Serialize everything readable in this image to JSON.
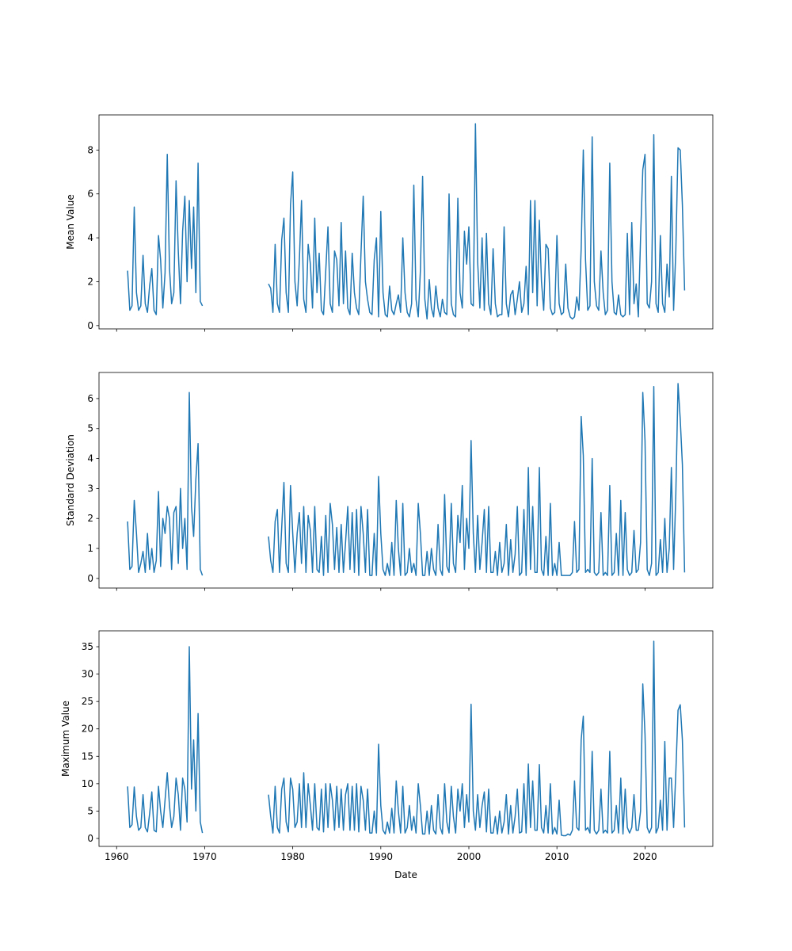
{
  "chart_data": [
    {
      "type": "line",
      "ylabel": "Mean Value",
      "xlabel": "",
      "color": "#1f77b4",
      "xlim": [
        1958.0,
        2027.7
      ],
      "ylim": [
        -0.15,
        9.6
      ],
      "xticks": [
        1960,
        1970,
        1980,
        1990,
        2000,
        2010,
        2020
      ],
      "show_xtick_labels": false,
      "yticks": [
        0,
        2,
        4,
        6,
        8
      ],
      "x_start": 1961.0,
      "x_step": 0.25,
      "values": [
        null,
        2.5,
        0.7,
        0.9,
        5.4,
        1.5,
        0.7,
        0.9,
        3.2,
        1.0,
        0.6,
        1.8,
        2.6,
        0.7,
        0.5,
        4.1,
        3.0,
        0.8,
        2.4,
        7.8,
        2.6,
        1.0,
        1.5,
        6.6,
        3.4,
        1.0,
        4.3,
        5.9,
        2.0,
        5.7,
        2.6,
        5.4,
        1.5,
        7.4,
        1.1,
        0.9,
        null,
        null,
        null,
        null,
        null,
        null,
        null,
        null,
        null,
        null,
        null,
        null,
        null,
        null,
        null,
        null,
        null,
        null,
        null,
        null,
        null,
        null,
        null,
        null,
        null,
        null,
        null,
        null,
        null,
        1.9,
        1.7,
        0.6,
        3.7,
        1.0,
        0.6,
        3.9,
        4.9,
        1.5,
        0.6,
        5.5,
        7.0,
        2.0,
        0.9,
        3.0,
        5.7,
        1.2,
        0.6,
        3.7,
        2.8,
        0.8,
        4.9,
        1.5,
        3.3,
        0.7,
        0.5,
        2.5,
        4.5,
        1.0,
        0.6,
        3.4,
        3.0,
        0.9,
        4.7,
        1.0,
        3.4,
        0.8,
        0.5,
        3.3,
        1.5,
        0.8,
        0.5,
        3.3,
        5.9,
        2.0,
        1.2,
        0.6,
        0.5,
        3.0,
        4.0,
        0.4,
        5.2,
        1.5,
        0.5,
        0.4,
        1.8,
        0.7,
        0.5,
        1.0,
        1.4,
        0.6,
        4.0,
        1.5,
        0.6,
        0.4,
        1.0,
        6.4,
        1.2,
        0.4,
        2.5,
        6.8,
        1.2,
        0.3,
        2.1,
        0.8,
        0.4,
        1.8,
        0.8,
        0.4,
        1.2,
        0.6,
        0.5,
        6.0,
        1.0,
        0.5,
        0.4,
        5.8,
        1.5,
        0.8,
        4.3,
        2.8,
        4.5,
        1.0,
        0.9,
        9.2,
        2.9,
        0.8,
        4.0,
        0.7,
        4.2,
        1.0,
        0.5,
        3.5,
        1.0,
        0.4,
        0.5,
        0.5,
        4.5,
        1.0,
        0.4,
        1.4,
        1.6,
        0.5,
        1.2,
        2.0,
        0.6,
        1.0,
        2.7,
        0.5,
        5.7,
        1.5,
        5.7,
        0.9,
        4.8,
        2.0,
        0.7,
        3.7,
        3.5,
        0.8,
        0.5,
        0.6,
        4.1,
        1.0,
        0.5,
        0.6,
        2.8,
        0.8,
        0.4,
        0.3,
        0.4,
        1.3,
        0.7,
        3.5,
        8.0,
        3.0,
        0.7,
        0.9,
        8.6,
        2.0,
        0.9,
        0.7,
        3.4,
        1.5,
        0.5,
        0.7,
        7.4,
        2.0,
        0.6,
        0.5,
        1.4,
        0.5,
        0.4,
        0.5,
        4.2,
        0.5,
        4.7,
        1.0,
        1.9,
        0.4,
        4.0,
        7.1,
        7.8,
        1.0,
        0.8,
        2.0,
        8.7,
        1.0,
        0.6,
        4.1,
        1.0,
        0.6,
        2.8,
        1.3,
        6.8,
        0.7,
        3.4,
        8.1,
        8.0,
        5.5,
        1.6
      ]
    },
    {
      "type": "line",
      "ylabel": "Standard Deviation",
      "xlabel": "",
      "color": "#1f77b4",
      "xlim": [
        1958.0,
        2027.7
      ],
      "ylim": [
        -0.32,
        6.87
      ],
      "xticks": [
        1960,
        1970,
        1980,
        1990,
        2000,
        2010,
        2020
      ],
      "show_xtick_labels": false,
      "yticks": [
        0,
        1,
        2,
        3,
        4,
        5,
        6
      ],
      "x_start": 1961.0,
      "x_step": 0.25,
      "values": [
        null,
        1.9,
        0.3,
        0.4,
        2.6,
        1.5,
        0.2,
        0.5,
        0.9,
        0.2,
        1.5,
        0.3,
        1.0,
        0.2,
        0.6,
        2.9,
        0.4,
        2.0,
        1.5,
        2.4,
        2.0,
        0.3,
        2.2,
        2.4,
        0.5,
        3.0,
        1.0,
        2.0,
        0.3,
        6.2,
        2.4,
        1.4,
        3.3,
        4.5,
        0.3,
        0.1,
        null,
        null,
        null,
        null,
        null,
        null,
        null,
        null,
        null,
        null,
        null,
        null,
        null,
        null,
        null,
        null,
        null,
        null,
        null,
        null,
        null,
        null,
        null,
        null,
        null,
        null,
        null,
        null,
        null,
        1.4,
        0.6,
        0.2,
        1.9,
        2.3,
        0.2,
        1.7,
        3.2,
        0.5,
        0.2,
        3.1,
        1.5,
        0.2,
        1.5,
        2.2,
        0.5,
        2.4,
        0.2,
        2.1,
        1.6,
        0.2,
        2.4,
        0.3,
        0.2,
        1.4,
        0.1,
        2.1,
        0.2,
        2.5,
        1.8,
        0.3,
        1.7,
        0.2,
        1.8,
        0.2,
        1.2,
        2.4,
        0.3,
        2.2,
        0.2,
        2.3,
        0.1,
        2.4,
        1.5,
        0.2,
        2.3,
        0.1,
        0.1,
        1.5,
        0.1,
        3.4,
        1.5,
        0.3,
        0.1,
        0.5,
        0.1,
        1.2,
        0.1,
        2.6,
        1.0,
        0.1,
        2.5,
        0.1,
        0.2,
        1.0,
        0.2,
        0.5,
        0.1,
        2.5,
        1.5,
        0.1,
        0.1,
        0.9,
        0.1,
        1.0,
        0.3,
        0.1,
        1.8,
        0.3,
        0.1,
        2.8,
        0.4,
        0.2,
        2.5,
        0.5,
        0.2,
        2.1,
        1.2,
        3.1,
        0.3,
        2.0,
        1.0,
        4.6,
        1.5,
        0.2,
        2.1,
        0.3,
        1.2,
        2.3,
        0.2,
        2.4,
        0.2,
        0.2,
        0.9,
        0.1,
        1.2,
        0.2,
        0.5,
        1.8,
        0.1,
        1.3,
        0.2,
        0.8,
        2.4,
        0.1,
        0.2,
        2.3,
        0.1,
        3.7,
        0.3,
        2.4,
        0.2,
        0.2,
        3.7,
        0.3,
        0.1,
        1.4,
        0.1,
        2.5,
        0.1,
        0.5,
        0.1,
        1.2,
        0.1,
        0.1,
        0.1,
        0.1,
        0.1,
        0.2,
        1.9,
        0.2,
        0.3,
        5.4,
        4.1,
        0.2,
        0.3,
        0.2,
        4.0,
        0.2,
        0.1,
        0.2,
        2.2,
        0.1,
        0.2,
        0.1,
        3.1,
        0.1,
        0.2,
        1.5,
        0.1,
        2.6,
        0.1,
        2.2,
        0.3,
        0.1,
        0.2,
        1.6,
        0.2,
        0.3,
        1.2,
        6.2,
        4.6,
        0.3,
        0.1,
        0.5,
        6.4,
        0.1,
        0.2,
        1.3,
        0.2,
        2.0,
        0.2,
        1.0,
        3.7,
        0.3,
        2.8,
        6.5,
        5.3,
        3.8,
        0.2
      ]
    },
    {
      "type": "line",
      "ylabel": "Maximum Value",
      "xlabel": "Date",
      "color": "#1f77b4",
      "xlim": [
        1958.0,
        2027.7
      ],
      "ylim": [
        -1.45,
        37.9
      ],
      "xticks": [
        1960,
        1970,
        1980,
        1990,
        2000,
        2010,
        2020
      ],
      "show_xtick_labels": true,
      "yticks": [
        0,
        5,
        10,
        15,
        20,
        25,
        30,
        35
      ],
      "x_start": 1961.0,
      "x_step": 0.25,
      "values": [
        null,
        9.5,
        2.0,
        2.5,
        9.4,
        4.0,
        1.5,
        2.0,
        8.0,
        2.0,
        1.2,
        4.5,
        8.5,
        1.5,
        1.2,
        9.5,
        5.0,
        2.0,
        7.0,
        12.0,
        6.0,
        2.0,
        4.0,
        11.0,
        8.0,
        1.5,
        11.0,
        9.0,
        3.0,
        35.0,
        9.0,
        18.0,
        5.0,
        22.8,
        3.0,
        1.0,
        null,
        null,
        null,
        null,
        null,
        null,
        null,
        null,
        null,
        null,
        null,
        null,
        null,
        null,
        null,
        null,
        null,
        null,
        null,
        null,
        null,
        null,
        null,
        null,
        null,
        null,
        null,
        null,
        null,
        8.0,
        4.0,
        1.0,
        9.5,
        2.0,
        1.0,
        9.0,
        11.0,
        3.0,
        1.2,
        11.0,
        9.0,
        2.0,
        3.0,
        10.0,
        2.0,
        12.0,
        2.0,
        10.0,
        6.0,
        1.5,
        10.0,
        2.0,
        1.5,
        9.0,
        1.2,
        10.0,
        2.0,
        10.0,
        7.0,
        1.5,
        9.5,
        2.0,
        9.0,
        1.5,
        8.0,
        10.0,
        1.5,
        9.5,
        1.5,
        10.0,
        1.2,
        9.5,
        7.0,
        1.5,
        9.0,
        1.0,
        1.0,
        5.0,
        1.0,
        17.2,
        6.0,
        1.5,
        0.8,
        3.0,
        1.0,
        5.5,
        1.0,
        10.5,
        5.0,
        1.0,
        9.5,
        1.0,
        2.0,
        6.0,
        1.5,
        4.0,
        1.0,
        10.0,
        6.0,
        0.8,
        0.8,
        5.0,
        0.8,
        6.0,
        1.5,
        0.8,
        8.0,
        2.0,
        0.8,
        10.0,
        3.0,
        1.0,
        9.5,
        4.0,
        1.0,
        9.0,
        5.0,
        10.0,
        2.0,
        8.0,
        3.0,
        24.5,
        5.0,
        1.5,
        8.0,
        2.0,
        6.0,
        8.5,
        1.2,
        9.0,
        1.0,
        1.0,
        4.0,
        0.8,
        5.0,
        1.0,
        3.0,
        8.0,
        0.8,
        6.0,
        1.0,
        4.0,
        9.0,
        1.0,
        1.2,
        10.0,
        1.0,
        13.6,
        2.0,
        10.5,
        1.5,
        1.5,
        13.5,
        2.0,
        1.0,
        6.0,
        1.0,
        10.0,
        0.8,
        2.0,
        0.8,
        7.0,
        0.6,
        0.5,
        0.5,
        0.8,
        0.6,
        1.5,
        10.5,
        2.0,
        1.5,
        18.0,
        22.3,
        1.5,
        2.0,
        1.0,
        15.9,
        1.5,
        0.8,
        1.5,
        9.0,
        1.0,
        1.5,
        1.0,
        15.9,
        1.0,
        1.5,
        6.0,
        1.0,
        11.0,
        0.8,
        9.0,
        2.0,
        1.0,
        2.0,
        8.0,
        1.5,
        1.5,
        5.0,
        28.2,
        19.0,
        2.0,
        1.0,
        2.0,
        36.0,
        1.0,
        2.0,
        7.0,
        1.5,
        17.7,
        1.5,
        11.0,
        11.0,
        2.0,
        12.0,
        23.4,
        24.4,
        18.0,
        2.0
      ]
    }
  ]
}
